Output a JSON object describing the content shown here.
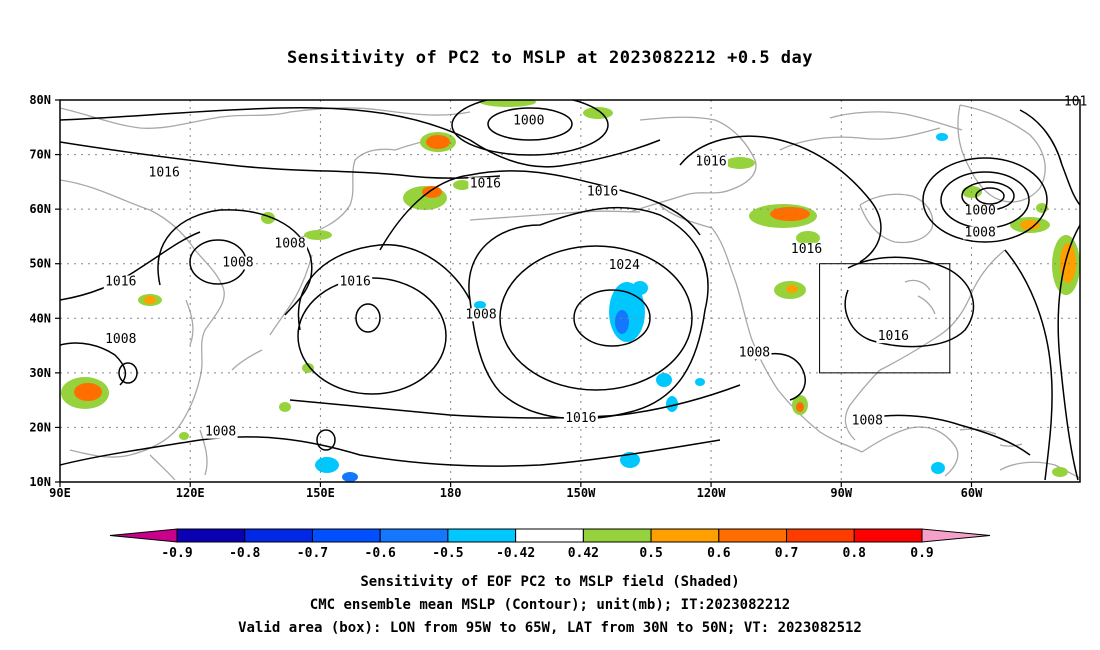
{
  "title": "Sensitivity of PC2 to MSLP at 2023082212 +0.5 day",
  "lat_labels": [
    "80N",
    "70N",
    "60N",
    "50N",
    "40N",
    "30N",
    "20N",
    "10N"
  ],
  "lon_labels": [
    "90E",
    "120E",
    "150E",
    "180",
    "150W",
    "120W",
    "90W",
    "60W"
  ],
  "contour_labels": [
    {
      "text": "1000",
      "lon": -162,
      "lat": 75.5
    },
    {
      "text": "1016",
      "lon": 114,
      "lat": 66
    },
    {
      "text": "1016",
      "lon": -172,
      "lat": 64
    },
    {
      "text": "1016",
      "lon": -145,
      "lat": 62.5
    },
    {
      "text": "1016",
      "lon": -120,
      "lat": 68
    },
    {
      "text": "1016",
      "lon": -98,
      "lat": 52
    },
    {
      "text": "1000",
      "lon": -58,
      "lat": 59
    },
    {
      "text": "1008",
      "lon": -58,
      "lat": 55
    },
    {
      "text": "1008",
      "lon": 143,
      "lat": 53
    },
    {
      "text": "1008",
      "lon": 131,
      "lat": 49.5
    },
    {
      "text": "1016",
      "lon": 104,
      "lat": 46
    },
    {
      "text": "1016",
      "lon": 158,
      "lat": 46
    },
    {
      "text": "1008",
      "lon": -173,
      "lat": 40
    },
    {
      "text": "1024",
      "lon": -140,
      "lat": 49
    },
    {
      "text": "1008",
      "lon": 104,
      "lat": 35.5
    },
    {
      "text": "1016",
      "lon": -78,
      "lat": 36
    },
    {
      "text": "1008",
      "lon": -110,
      "lat": 33
    },
    {
      "text": "1016",
      "lon": -150,
      "lat": 21
    },
    {
      "text": "1008",
      "lon": 127,
      "lat": 18.5
    },
    {
      "text": "1008",
      "lon": -84,
      "lat": 20.5
    },
    {
      "text": "101",
      "lon": -36,
      "lat": 79
    }
  ],
  "colorbar": {
    "labels": [
      "-0.9",
      "-0.8",
      "-0.7",
      "-0.6",
      "-0.5",
      "-0.42",
      "0.42",
      "0.5",
      "0.6",
      "0.7",
      "0.8",
      "0.9"
    ],
    "colors": [
      "#0a00b4",
      "#0028e6",
      "#0050ff",
      "#1478ff",
      "#00c8ff",
      "#ffffff",
      "#96d23c",
      "#ffa000",
      "#ff6e00",
      "#ff3c00",
      "#ff0000"
    ],
    "low_end_color": "#c8008c",
    "high_end_color": "#f5a0c8"
  },
  "valid_box": {
    "lon_min": -95,
    "lon_max": -65,
    "lat_min": 30,
    "lat_max": 50
  },
  "footer": {
    "line1": "Sensitivity of EOF PC2 to MSLP field (Shaded)",
    "line2": "CMC ensemble mean MSLP (Contour); unit(mb); IT:2023082212",
    "line3": "Valid area (box): LON from 95W to 65W, LAT from 30N to 50N; VT: 2023082512"
  }
}
